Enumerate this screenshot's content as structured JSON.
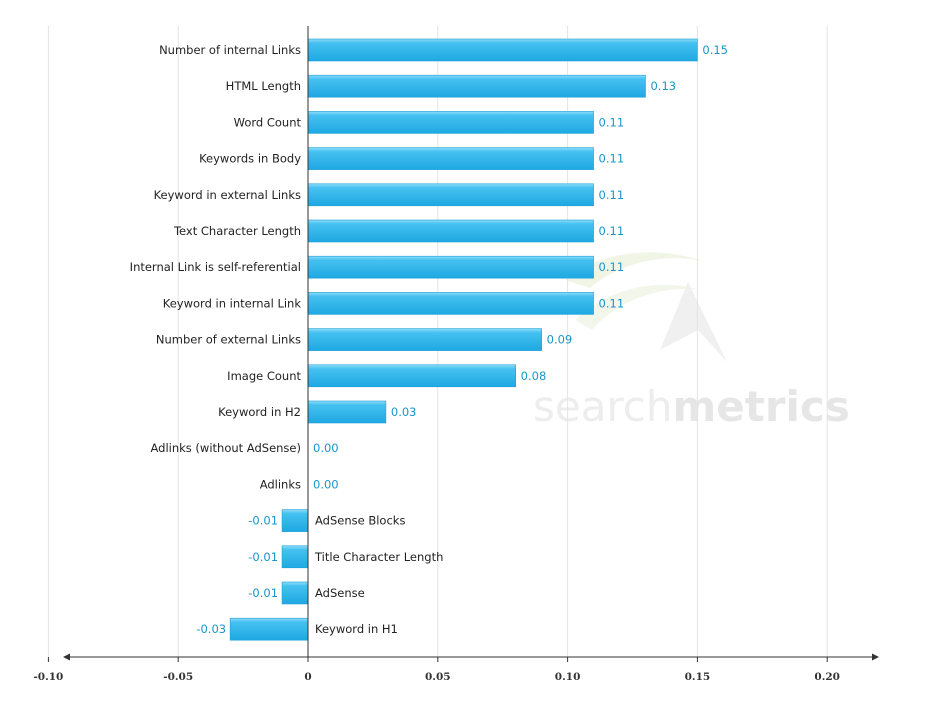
{
  "watermark": {
    "light": "search",
    "bold": "metrics"
  },
  "colors": {
    "bar_fill": "#29b2ea",
    "bar_highlight": "#8fdcfa",
    "value_label": "#1b95c8",
    "grid": "#e3e3e3",
    "axis": "#333333"
  },
  "chart_data": {
    "type": "bar",
    "orientation": "horizontal",
    "title": "",
    "xlabel": "",
    "ylabel": "",
    "categories": [
      "Number of internal Links",
      "HTML Length",
      "Word Count",
      "Keywords in Body",
      "Keyword in external Links",
      "Text Character Length",
      "Internal Link is self-referential",
      "Keyword in internal Link",
      "Number of external Links",
      "Image Count",
      "Keyword in H2",
      "Adlinks (without AdSense)",
      "Adlinks",
      "AdSense Blocks",
      "Title Character Length",
      "AdSense",
      "Keyword in H1"
    ],
    "values": [
      0.15,
      0.13,
      0.11,
      0.11,
      0.11,
      0.11,
      0.11,
      0.11,
      0.09,
      0.08,
      0.03,
      0.0,
      0.0,
      -0.01,
      -0.01,
      -0.01,
      -0.03
    ],
    "value_labels": [
      "0.15",
      "0.13",
      "0.11",
      "0.11",
      "0.11",
      "0.11",
      "0.11",
      "0.11",
      "0.09",
      "0.08",
      "0.03",
      "0.00",
      "0.00",
      "-0.01",
      "-0.01",
      "-0.01",
      "-0.03"
    ],
    "xlim": [
      -0.185,
      0.435
    ],
    "ticks": [
      -0.15,
      -0.1,
      -0.05,
      0,
      0.05,
      0.1,
      0.15,
      0.2,
      0.25,
      0.3,
      0.35,
      0.4
    ],
    "tick_labels": [
      "-0.15",
      "-0.10",
      "-0.05",
      "0",
      "0.05",
      "0.10",
      "0.15",
      "0.20",
      "0.25",
      "0.30",
      "0.35",
      "0.40"
    ],
    "grid": true,
    "legend": "none"
  }
}
